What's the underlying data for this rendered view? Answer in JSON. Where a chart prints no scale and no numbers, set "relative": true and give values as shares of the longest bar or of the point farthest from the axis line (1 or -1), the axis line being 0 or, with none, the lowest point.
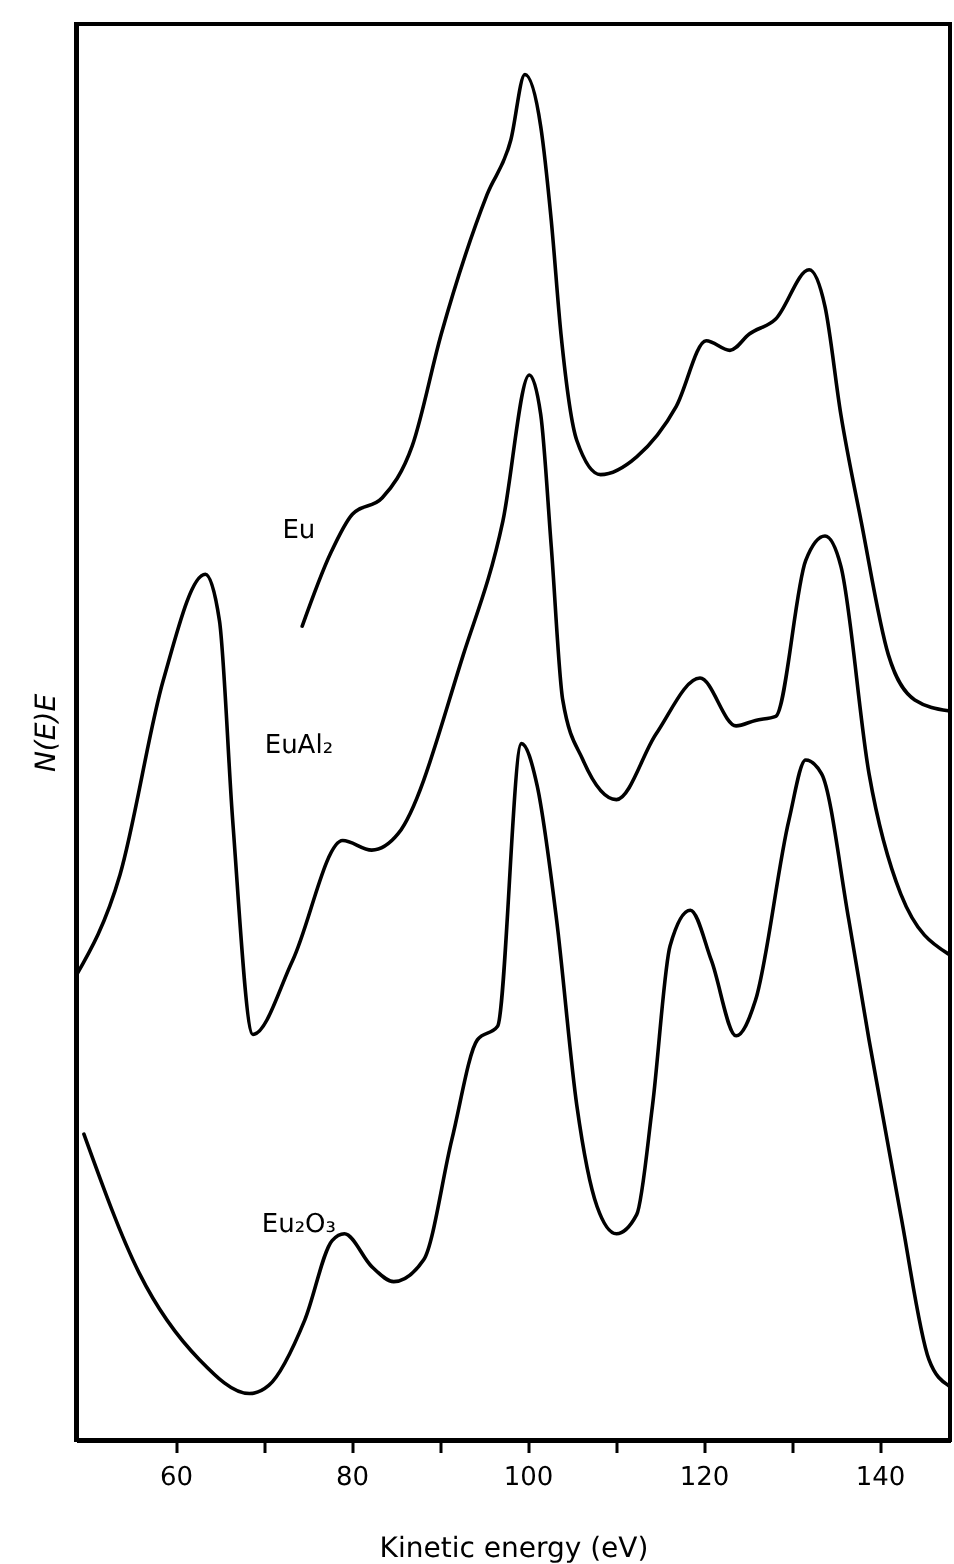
{
  "chart_data": {
    "type": "line",
    "xlabel": "Kinetic energy (eV)",
    "ylabel": "N(E)E",
    "relative": true,
    "xlim": [
      48.7,
      148
    ],
    "xticks": [
      60,
      {
        "value": 70,
        "label": null
      },
      80,
      {
        "value": 90,
        "label": null
      },
      100,
      {
        "value": 110,
        "label": null
      },
      120,
      {
        "value": 130,
        "label": null
      },
      140
    ],
    "grid": false,
    "marker": "none",
    "line_style": "solid",
    "series": [
      {
        "name": "Eu",
        "color": "#000000",
        "x": [
          74.4,
          77.6,
          80.1,
          83.5,
          86.9,
          90.2,
          95.4,
          98.1,
          99.7,
          101.5,
          102.7,
          103.8,
          105.6,
          108.3,
          112.4,
          116.9,
          120.3,
          123,
          125.2,
          128.2,
          132,
          133.8,
          135.6,
          137.9,
          141,
          144,
          147.8
        ],
        "values": [
          0.596,
          0.649,
          0.678,
          0.69,
          0.728,
          0.81,
          0.912,
          0.952,
          1,
          0.962,
          0.893,
          0.81,
          0.732,
          0.707,
          0.72,
          0.757,
          0.805,
          0.798,
          0.81,
          0.821,
          0.857,
          0.83,
          0.751,
          0.673,
          0.575,
          0.542,
          0.534
        ]
      },
      {
        "name": "EuAl₂",
        "color": "#000000",
        "x": [
          48.7,
          53.7,
          58.6,
          63.4,
          65,
          66.5,
          68.8,
          73.3,
          79,
          82.3,
          85.3,
          92.7,
          97.2,
          100.2,
          101.5,
          102.7,
          104,
          106.3,
          110.1,
          114.6,
          119.6,
          123.7,
          125.9,
          128.2,
          131.6,
          133.8,
          135.6,
          138.8,
          142.4,
          147.8
        ],
        "values": [
          0.34,
          0.414,
          0.556,
          0.634,
          0.6,
          0.454,
          0.297,
          0.351,
          0.439,
          0.432,
          0.444,
          0.575,
          0.673,
          0.78,
          0.751,
          0.654,
          0.542,
          0.498,
          0.469,
          0.517,
          0.558,
          0.523,
          0.527,
          0.53,
          0.644,
          0.662,
          0.64,
          0.488,
          0.4,
          0.356
        ]
      },
      {
        "name": "Eu₂O₃",
        "color": "#000000",
        "x": [
          49.6,
          55.9,
          62.7,
          68.4,
          70.6,
          74.7,
          77.8,
          79.2,
          82.3,
          84.8,
          88.2,
          91.4,
          94.3,
          96.6,
          99.3,
          101.1,
          103.3,
          105.6,
          107.9,
          110.1,
          112.4,
          114.2,
          116.2,
          118.5,
          120.9,
          123.7,
          125.9,
          129.7,
          131.6,
          133.4,
          136.5,
          138.8,
          142.4,
          145.6,
          147.8
        ],
        "values": [
          0.224,
          0.122,
          0.059,
          0.034,
          0.04,
          0.088,
          0.146,
          0.151,
          0.127,
          0.116,
          0.132,
          0.22,
          0.293,
          0.303,
          0.51,
          0.479,
          0.381,
          0.245,
          0.171,
          0.151,
          0.165,
          0.245,
          0.362,
          0.388,
          0.351,
          0.296,
          0.322,
          0.454,
          0.498,
          0.488,
          0.381,
          0.293,
          0.165,
          0.059,
          0.04
        ]
      }
    ]
  }
}
